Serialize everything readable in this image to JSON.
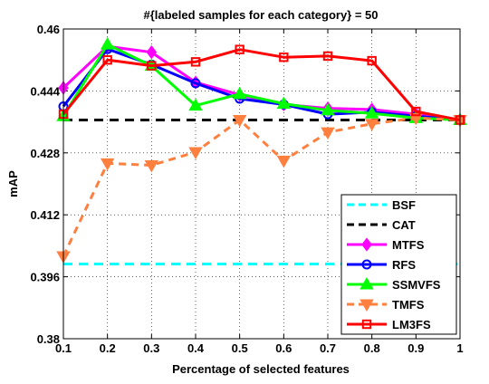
{
  "chart_data": {
    "type": "line",
    "title": "#{labeled samples for each category} = 50",
    "xlabel": "Percentage of selected features",
    "ylabel": "mAP",
    "xlim": [
      0.1,
      1
    ],
    "ylim": [
      0.38,
      0.46
    ],
    "x": [
      0.1,
      0.2,
      0.3,
      0.4,
      0.5,
      0.6,
      0.7,
      0.8,
      0.9,
      1
    ],
    "x_tick_labels": [
      "0.1",
      "0.2",
      "0.3",
      "0.4",
      "0.5",
      "0.6",
      "0.7",
      "0.8",
      "0.9",
      "1"
    ],
    "y_ticks": [
      0.38,
      0.396,
      0.412,
      0.428,
      0.444,
      0.46
    ],
    "y_tick_labels": [
      "0.38",
      "0.396",
      "0.412",
      "0.428",
      "0.444",
      "0.46"
    ],
    "grid": true,
    "legend_position": "lower-right",
    "series": [
      {
        "name": "BSF",
        "color": "#00ffff",
        "style": "dashed",
        "marker": "none",
        "values": [
          0.3993,
          0.3993,
          0.3993,
          0.3993,
          0.3993,
          0.3993,
          0.3993,
          0.3993,
          0.3993,
          0.3993
        ]
      },
      {
        "name": "CAT",
        "color": "#000000",
        "style": "dashed",
        "marker": "none",
        "values": [
          0.4365,
          0.4365,
          0.4365,
          0.4365,
          0.4365,
          0.4365,
          0.4365,
          0.4365,
          0.4365,
          0.4365
        ]
      },
      {
        "name": "MTFS",
        "color": "#ff00ff",
        "style": "solid",
        "marker": "diamond",
        "values": [
          0.4448,
          0.4555,
          0.454,
          0.4462,
          0.443,
          0.4405,
          0.4395,
          0.4392,
          0.438,
          0.4365
        ]
      },
      {
        "name": "RFS",
        "color": "#0000ff",
        "style": "solid",
        "marker": "circle",
        "values": [
          0.44,
          0.4548,
          0.4508,
          0.446,
          0.442,
          0.4405,
          0.438,
          0.4385,
          0.4375,
          0.4365
        ]
      },
      {
        "name": "SSMVFS",
        "color": "#00ff00",
        "style": "solid",
        "marker": "triangle-up",
        "values": [
          0.4375,
          0.456,
          0.4505,
          0.4402,
          0.4432,
          0.4407,
          0.439,
          0.4382,
          0.437,
          0.4365
        ]
      },
      {
        "name": "TMFS",
        "color": "#ff7f3f",
        "style": "dashed",
        "marker": "triangle-down",
        "values": [
          0.4013,
          0.4253,
          0.4248,
          0.4282,
          0.4365,
          0.426,
          0.4333,
          0.4355,
          0.437,
          0.4365
        ]
      },
      {
        "name": "LM3FS",
        "color": "#ff0000",
        "style": "solid",
        "marker": "square",
        "values": [
          0.438,
          0.452,
          0.4505,
          0.4515,
          0.4547,
          0.4527,
          0.453,
          0.4518,
          0.4387,
          0.4365
        ]
      }
    ]
  }
}
